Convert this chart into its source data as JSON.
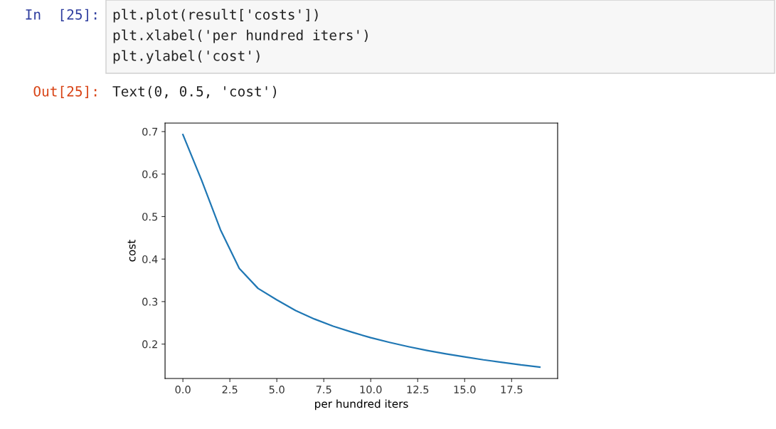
{
  "chart_data": {
    "type": "line",
    "xlabel": "per hundred iters",
    "ylabel": "cost",
    "x": [
      0,
      1,
      2,
      3,
      4,
      5,
      6,
      7,
      8,
      9,
      10,
      11,
      12,
      13,
      14,
      15,
      16,
      17,
      18,
      19
    ],
    "series": [
      {
        "color": "#1f77b4",
        "values": [
          0.693,
          0.585,
          0.469,
          0.378,
          0.331,
          0.304,
          0.279,
          0.259,
          0.242,
          0.228,
          0.215,
          0.204,
          0.194,
          0.185,
          0.177,
          0.17,
          0.163,
          0.157,
          0.151,
          0.146
        ]
      }
    ],
    "xlim": [
      -0.95,
      19.95
    ],
    "ylim": [
      0.119,
      0.72
    ],
    "xticks": [
      {
        "value": 0,
        "label": "0.0"
      },
      2.5,
      {
        "value": 5,
        "label": "5.0"
      },
      7.5,
      {
        "value": 10,
        "label": "10.0"
      },
      12.5,
      {
        "value": 15,
        "label": "15.0"
      },
      17.5
    ],
    "yticks": [
      0.2,
      0.3,
      0.4,
      0.5,
      0.6,
      0.7
    ],
    "annotations": [
      "In  [25]:",
      "plt.plot(result['costs'])",
      "plt.xlabel('per hundred iters')",
      "plt.ylabel('cost')",
      "Out[25]:",
      "Text(0, 0.5, 'cost')"
    ]
  }
}
